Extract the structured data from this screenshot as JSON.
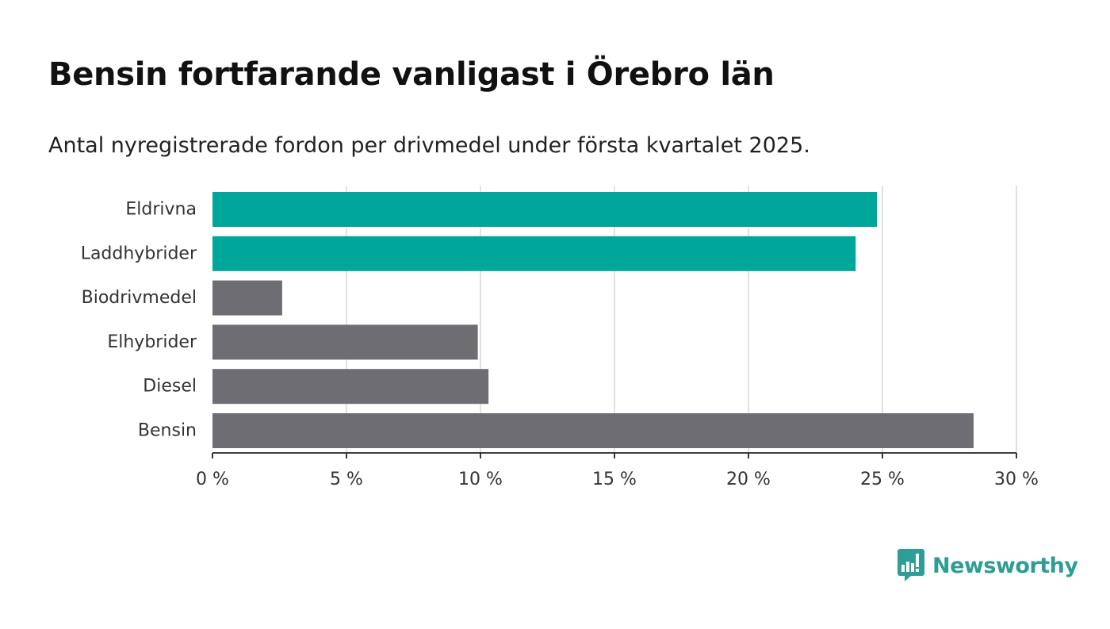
{
  "header": {
    "title": "Bensin fortfarande vanligast i Örebro län",
    "subtitle": "Antal nyregistrerade fordon per drivmedel under första kvartalet 2025."
  },
  "brand": {
    "name": "Newsworthy",
    "icon": "bar-chart-speech-bubble-icon",
    "color": "#2e9e94"
  },
  "colors": {
    "highlight": "#00a69a",
    "default": "#6e6d74",
    "grid": "#d9d9d9",
    "axis": "#222222"
  },
  "chart_data": {
    "type": "bar",
    "orientation": "horizontal",
    "categories": [
      "Eldrivna",
      "Laddhybrider",
      "Biodrivmedel",
      "Elhybrider",
      "Diesel",
      "Bensin"
    ],
    "values": [
      24.8,
      24.0,
      2.6,
      9.9,
      10.3,
      28.4
    ],
    "highlighted": [
      true,
      true,
      false,
      false,
      false,
      false
    ],
    "unit": "%",
    "xlim": [
      0,
      30
    ],
    "xticks": [
      0,
      5,
      10,
      15,
      20,
      25,
      30
    ],
    "xtick_labels": [
      "0 %",
      "5 %",
      "10 %",
      "15 %",
      "20 %",
      "25 %",
      "30 %"
    ],
    "grid": "vertical",
    "legend": "none"
  }
}
